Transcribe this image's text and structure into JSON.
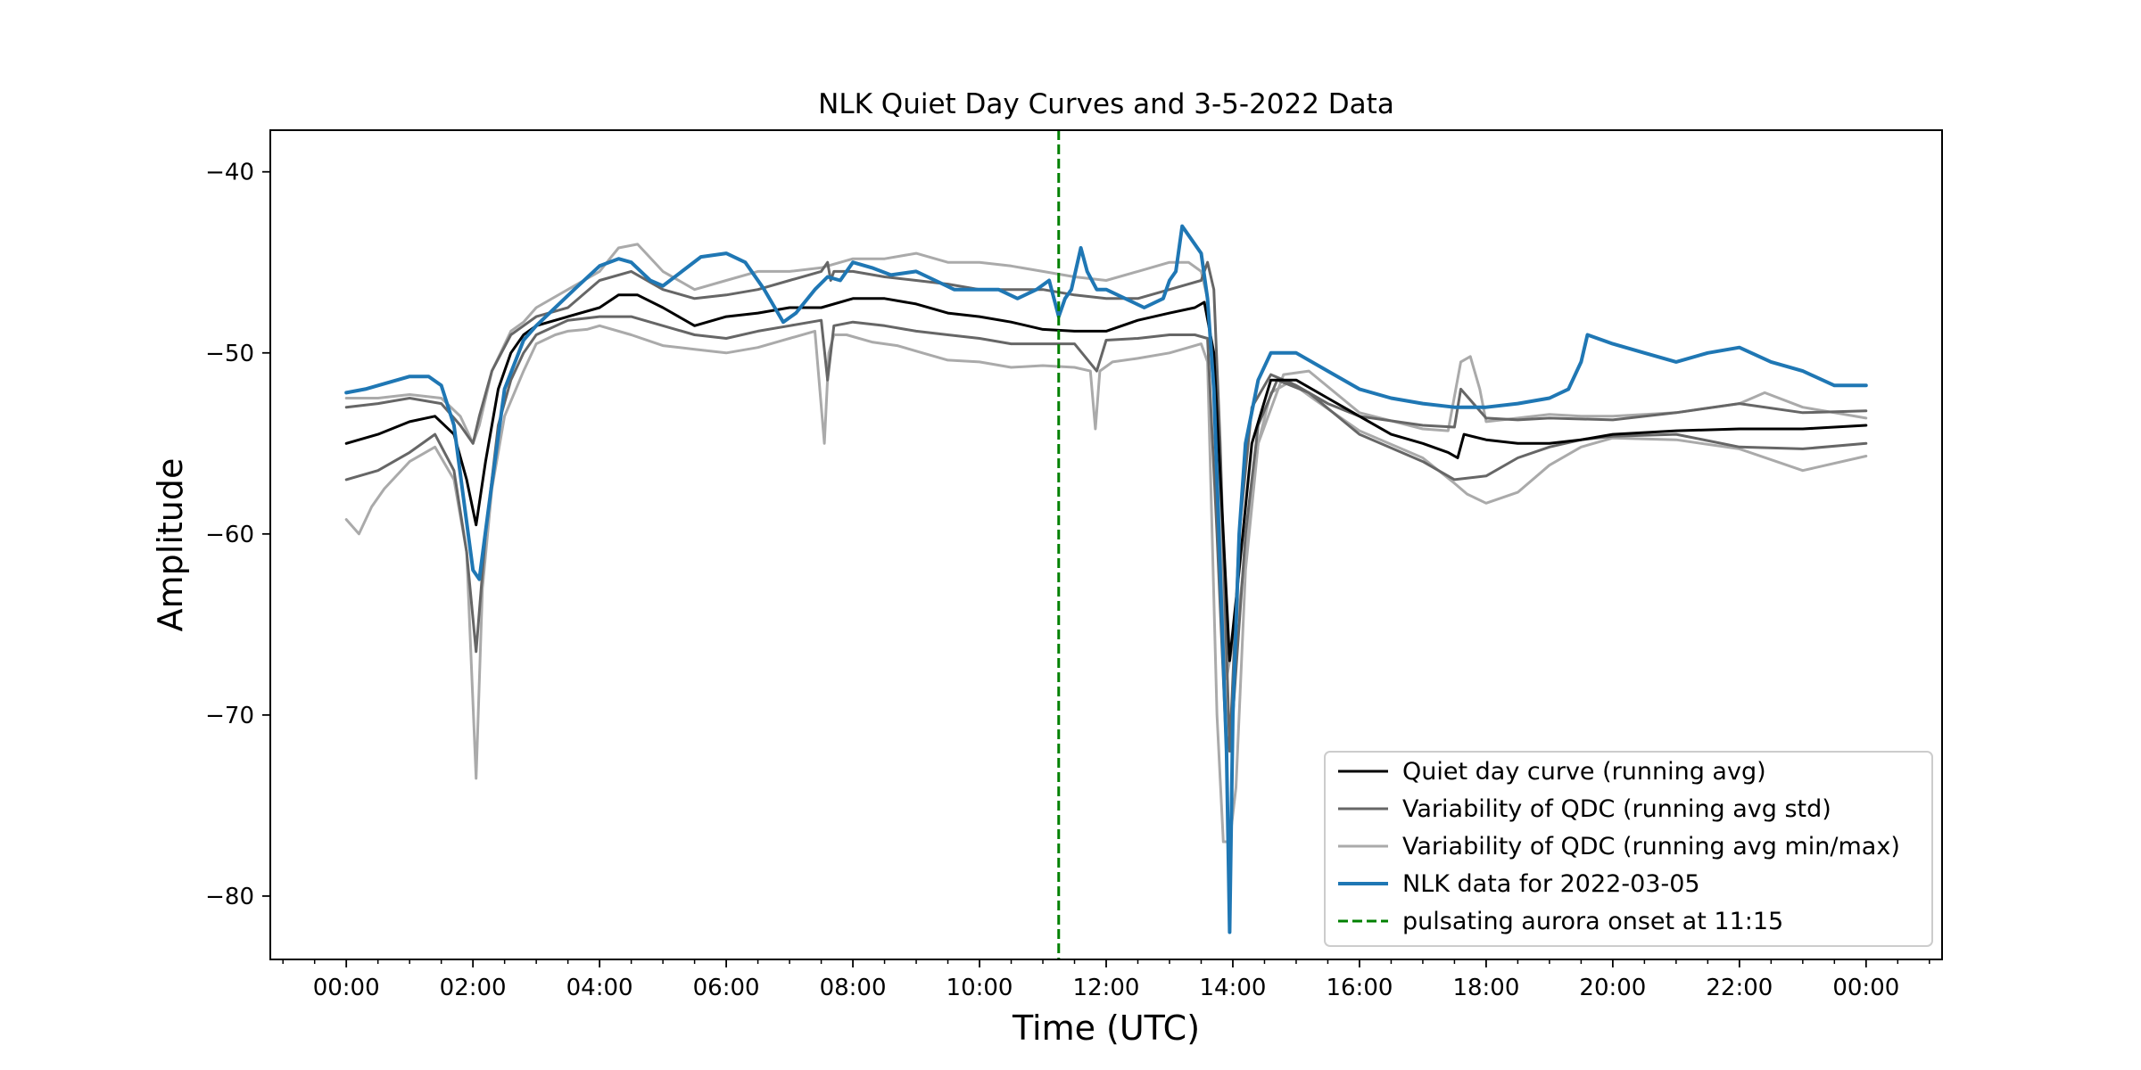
{
  "chart_data": {
    "type": "line",
    "title": "NLK Quiet Day Curves and 3-5-2022 Data",
    "xlabel": "Time (UTC)",
    "ylabel": "Amplitude",
    "xlim": [
      -1.2,
      25.2
    ],
    "ylim": [
      -83.5,
      -37.7
    ],
    "x_unit": "hours UTC",
    "x_ticks": [
      0,
      2,
      4,
      6,
      8,
      10,
      12,
      14,
      16,
      18,
      20,
      22,
      24
    ],
    "x_tick_labels": [
      "00:00",
      "02:00",
      "04:00",
      "06:00",
      "08:00",
      "10:00",
      "12:00",
      "14:00",
      "16:00",
      "18:00",
      "20:00",
      "22:00",
      "00:00"
    ],
    "y_ticks": [
      -40,
      -50,
      -60,
      -70,
      -80
    ],
    "y_tick_labels": [
      "−40",
      "−50",
      "−60",
      "−70",
      "−80"
    ],
    "grid": false,
    "legend_position": "lower-right",
    "vline": {
      "x": 11.25,
      "color": "#008000",
      "style": "dashed",
      "label": "pulsating aurora onset at 11:15"
    },
    "series": [
      {
        "name": "Variability of QDC (running avg min/max)",
        "color": "#aaaaaa",
        "legend": true,
        "x": [
          0,
          0.2,
          0.4,
          0.6,
          1.0,
          1.4,
          1.7,
          1.9,
          2.05,
          2.15,
          2.3,
          2.5,
          2.8,
          3.0,
          3.3,
          3.5,
          3.8,
          4.0,
          4.5,
          5.0,
          5.5,
          6.0,
          6.5,
          7.0,
          7.4,
          7.55,
          7.62,
          7.7,
          7.9,
          8.3,
          8.7,
          9.1,
          9.5,
          10.0,
          10.5,
          11.0,
          11.5,
          11.75,
          11.83,
          11.9,
          12.1,
          12.5,
          13.0,
          13.3,
          13.5,
          13.6,
          13.75,
          13.85,
          13.95,
          14.05,
          14.2,
          14.4,
          14.6,
          14.9,
          15.3,
          16.0,
          17.0,
          17.5,
          17.7,
          18.0,
          18.5,
          19.0,
          19.5,
          20.0,
          21.0,
          22.0,
          23.0,
          24.0
        ],
        "y": [
          -59.2,
          -60.0,
          -58.5,
          -57.5,
          -56.0,
          -55.2,
          -57.0,
          -61.0,
          -73.5,
          -63.0,
          -57.5,
          -53.5,
          -51.0,
          -49.5,
          -49.0,
          -48.8,
          -48.7,
          -48.5,
          -49.0,
          -49.6,
          -49.8,
          -50.0,
          -49.7,
          -49.2,
          -48.8,
          -55.0,
          -50.0,
          -49.0,
          -49.0,
          -49.4,
          -49.6,
          -50.0,
          -50.4,
          -50.5,
          -50.8,
          -50.7,
          -50.8,
          -51.0,
          -54.2,
          -51.0,
          -50.5,
          -50.3,
          -50.0,
          -49.7,
          -49.5,
          -50.5,
          -70.0,
          -77.0,
          -77.0,
          -74.0,
          -62.0,
          -55.0,
          -52.2,
          -51.6,
          -52.6,
          -54.3,
          -55.8,
          -57.2,
          -57.8,
          -58.3,
          -57.7,
          -56.2,
          -55.2,
          -54.7,
          -54.8,
          -55.3,
          -56.5,
          -55.7
        ]
      },
      {
        "name": "Variability of QDC (running avg min/max)",
        "color": "#aaaaaa",
        "legend": false,
        "x": [
          0,
          0.5,
          1.0,
          1.5,
          1.8,
          2.0,
          2.1,
          2.3,
          2.6,
          2.8,
          3.0,
          3.5,
          4.0,
          4.3,
          4.6,
          5.0,
          5.5,
          6.0,
          6.5,
          7.0,
          7.5,
          8.0,
          8.5,
          9.0,
          9.5,
          10.0,
          10.5,
          11.0,
          11.5,
          12.0,
          12.5,
          13.0,
          13.3,
          13.5,
          13.6,
          13.75,
          13.9,
          14.1,
          14.4,
          14.8,
          15.2,
          16.0,
          17.0,
          17.4,
          17.6,
          17.75,
          17.9,
          18.0,
          18.5,
          19.0,
          19.5,
          20.0,
          21.0,
          22.0,
          22.4,
          23.0,
          24.0
        ],
        "y": [
          -52.5,
          -52.5,
          -52.3,
          -52.5,
          -53.5,
          -55.0,
          -54.0,
          -51.0,
          -48.8,
          -48.3,
          -47.5,
          -46.5,
          -45.5,
          -44.2,
          -44.0,
          -45.5,
          -46.5,
          -46.0,
          -45.5,
          -45.5,
          -45.3,
          -44.8,
          -44.8,
          -44.5,
          -45.0,
          -45.0,
          -45.2,
          -45.5,
          -45.8,
          -46.0,
          -45.5,
          -45.0,
          -45.0,
          -45.5,
          -47.0,
          -55.0,
          -68.0,
          -64.0,
          -55.0,
          -51.2,
          -51.0,
          -53.3,
          -54.2,
          -54.3,
          -50.5,
          -50.2,
          -52.0,
          -53.8,
          -53.6,
          -53.4,
          -53.5,
          -53.5,
          -53.3,
          -52.8,
          -52.2,
          -53.0,
          -53.6
        ]
      },
      {
        "name": "Variability of QDC (running avg std)",
        "color": "#666666",
        "legend": true,
        "x": [
          0,
          0.5,
          1.0,
          1.4,
          1.7,
          1.9,
          2.05,
          2.2,
          2.4,
          2.6,
          2.8,
          3.0,
          3.5,
          4.0,
          4.5,
          5.0,
          5.5,
          6.0,
          6.5,
          7.0,
          7.5,
          7.6,
          7.7,
          8.0,
          8.5,
          9.0,
          9.5,
          10.0,
          10.5,
          11.0,
          11.5,
          11.85,
          12.0,
          12.5,
          13.0,
          13.4,
          13.6,
          13.75,
          13.9,
          14.0,
          14.2,
          14.4,
          14.7,
          15.2,
          16.0,
          17.0,
          17.5,
          18.0,
          18.5,
          19.0,
          19.5,
          20.0,
          21.0,
          22.0,
          23.0,
          24.0
        ],
        "y": [
          -57.0,
          -56.5,
          -55.5,
          -54.5,
          -56.5,
          -61.0,
          -66.5,
          -60.0,
          -54.0,
          -51.5,
          -50.0,
          -49.0,
          -48.2,
          -48.0,
          -48.0,
          -48.5,
          -49.0,
          -49.2,
          -48.8,
          -48.5,
          -48.2,
          -51.5,
          -48.5,
          -48.3,
          -48.5,
          -48.8,
          -49.0,
          -49.2,
          -49.5,
          -49.5,
          -49.5,
          -51.0,
          -49.3,
          -49.2,
          -49.0,
          -49.0,
          -49.2,
          -60.0,
          -72.0,
          -70.0,
          -60.0,
          -54.0,
          -51.5,
          -52.2,
          -54.5,
          -56.0,
          -57.0,
          -56.8,
          -55.8,
          -55.2,
          -54.8,
          -54.6,
          -54.5,
          -55.2,
          -55.3,
          -55.0
        ]
      },
      {
        "name": "Variability of QDC (running avg std)",
        "color": "#666666",
        "legend": false,
        "x": [
          0,
          0.5,
          1.0,
          1.5,
          1.8,
          2.0,
          2.1,
          2.3,
          2.6,
          2.8,
          3.0,
          3.5,
          4.0,
          4.5,
          5.0,
          5.5,
          6.0,
          6.5,
          7.0,
          7.5,
          7.6,
          7.65,
          7.7,
          8.0,
          8.5,
          9.0,
          9.5,
          10.0,
          10.5,
          11.0,
          11.5,
          12.0,
          12.5,
          13.0,
          13.3,
          13.5,
          13.6,
          13.7,
          13.8,
          13.95,
          14.1,
          14.3,
          14.6,
          15.0,
          15.5,
          16.0,
          17.0,
          17.5,
          17.6,
          17.8,
          18.0,
          18.5,
          19.0,
          20.0,
          21.0,
          22.0,
          23.0,
          24.0
        ],
        "y": [
          -53.0,
          -52.8,
          -52.5,
          -52.8,
          -54.0,
          -55.0,
          -53.5,
          -51.0,
          -49.0,
          -48.5,
          -48.0,
          -47.5,
          -46.0,
          -45.5,
          -46.5,
          -47.0,
          -46.8,
          -46.5,
          -46.0,
          -45.5,
          -45.0,
          -46.0,
          -45.5,
          -45.5,
          -45.8,
          -46.0,
          -46.2,
          -46.5,
          -46.5,
          -46.5,
          -46.8,
          -47.0,
          -47.0,
          -46.5,
          -46.2,
          -46.0,
          -45.0,
          -46.5,
          -55.0,
          -72.0,
          -60.0,
          -53.0,
          -51.2,
          -51.8,
          -52.8,
          -53.5,
          -54.0,
          -54.1,
          -52.0,
          -52.8,
          -53.6,
          -53.7,
          -53.6,
          -53.7,
          -53.3,
          -52.8,
          -53.3,
          -53.2
        ]
      },
      {
        "name": "Quiet day curve (running avg)",
        "color": "#000000",
        "legend": true,
        "x": [
          0,
          0.5,
          1.0,
          1.4,
          1.7,
          1.9,
          2.05,
          2.2,
          2.4,
          2.6,
          2.8,
          3.0,
          3.5,
          4.0,
          4.3,
          4.6,
          5.0,
          5.5,
          6.0,
          6.5,
          7.0,
          7.5,
          8.0,
          8.5,
          9.0,
          9.5,
          10.0,
          10.5,
          11.0,
          11.5,
          12.0,
          12.5,
          13.0,
          13.4,
          13.55,
          13.7,
          13.85,
          13.95,
          14.1,
          14.3,
          14.6,
          15.0,
          15.5,
          16.0,
          16.5,
          17.0,
          17.4,
          17.55,
          17.65,
          18.0,
          18.5,
          19.0,
          19.5,
          20.0,
          21.0,
          22.0,
          23.0,
          24.0
        ],
        "y": [
          -55.0,
          -54.5,
          -53.8,
          -53.5,
          -54.5,
          -57.0,
          -59.5,
          -56.0,
          -52.0,
          -50.0,
          -49.0,
          -48.5,
          -48.0,
          -47.5,
          -46.8,
          -46.8,
          -47.5,
          -48.5,
          -48.0,
          -47.8,
          -47.5,
          -47.5,
          -47.0,
          -47.0,
          -47.3,
          -47.8,
          -48.0,
          -48.3,
          -48.7,
          -48.8,
          -48.8,
          -48.2,
          -47.8,
          -47.5,
          -47.2,
          -50.0,
          -60.0,
          -67.0,
          -62.0,
          -55.0,
          -51.5,
          -51.5,
          -52.5,
          -53.5,
          -54.5,
          -55.0,
          -55.5,
          -55.8,
          -54.5,
          -54.8,
          -55.0,
          -55.0,
          -54.8,
          -54.5,
          -54.3,
          -54.2,
          -54.2,
          -54.0
        ]
      },
      {
        "name": "NLK data for 2022-03-05",
        "color": "#1f77b4",
        "legend": true,
        "x": [
          0,
          0.3,
          0.6,
          1.0,
          1.3,
          1.5,
          1.7,
          1.85,
          2.0,
          2.1,
          2.25,
          2.5,
          2.8,
          3.0,
          3.3,
          3.6,
          4.0,
          4.3,
          4.5,
          4.8,
          5.0,
          5.3,
          5.6,
          6.0,
          6.3,
          6.6,
          6.9,
          7.1,
          7.4,
          7.6,
          7.8,
          8.0,
          8.3,
          8.6,
          9.0,
          9.3,
          9.6,
          10.0,
          10.3,
          10.6,
          10.9,
          11.1,
          11.25,
          11.35,
          11.45,
          11.6,
          11.7,
          11.85,
          12.0,
          12.3,
          12.6,
          12.9,
          13.0,
          13.1,
          13.2,
          13.3,
          13.5,
          13.6,
          13.7,
          13.8,
          13.9,
          13.95,
          14.0,
          14.1,
          14.2,
          14.4,
          14.6,
          15.0,
          15.5,
          16.0,
          16.5,
          17.0,
          17.5,
          18.0,
          18.5,
          19.0,
          19.3,
          19.5,
          19.6,
          20.0,
          20.5,
          21.0,
          21.5,
          22.0,
          22.5,
          23.0,
          23.5,
          24.0
        ],
        "y": [
          -52.2,
          -52.0,
          -51.7,
          -51.3,
          -51.3,
          -51.8,
          -54.0,
          -58.0,
          -62.0,
          -62.5,
          -58.5,
          -52.0,
          -49.3,
          -48.5,
          -47.5,
          -46.5,
          -45.2,
          -44.8,
          -45.0,
          -46.0,
          -46.3,
          -45.5,
          -44.7,
          -44.5,
          -45.0,
          -46.5,
          -48.3,
          -47.8,
          -46.5,
          -45.8,
          -46.0,
          -45.0,
          -45.3,
          -45.7,
          -45.5,
          -46.0,
          -46.5,
          -46.5,
          -46.5,
          -47.0,
          -46.5,
          -46.0,
          -48.0,
          -47.0,
          -46.5,
          -44.2,
          -45.5,
          -46.5,
          -46.5,
          -47.0,
          -47.5,
          -47.0,
          -46.0,
          -45.5,
          -43.0,
          -43.5,
          -44.5,
          -47.0,
          -52.0,
          -62.0,
          -72.0,
          -82.0,
          -70.0,
          -60.0,
          -55.0,
          -51.5,
          -50.0,
          -50.0,
          -51.0,
          -52.0,
          -52.5,
          -52.8,
          -53.0,
          -53.0,
          -52.8,
          -52.5,
          -52.0,
          -50.5,
          -49.0,
          -49.5,
          -50.0,
          -50.5,
          -50.0,
          -49.7,
          -50.5,
          -51.0,
          -51.8,
          -51.8
        ]
      }
    ]
  }
}
